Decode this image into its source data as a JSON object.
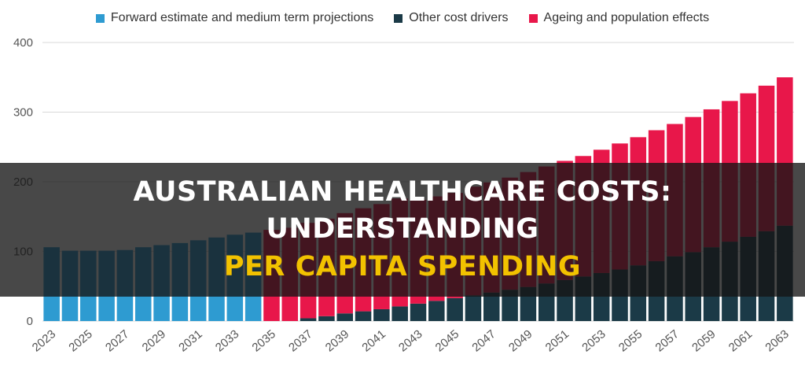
{
  "chart_data": {
    "type": "bar",
    "stacked": true,
    "categories": [
      "2023",
      "2024",
      "2025",
      "2026",
      "2027",
      "2028",
      "2029",
      "2030",
      "2031",
      "2032",
      "2033",
      "2034",
      "2035",
      "2036",
      "2037",
      "2038",
      "2039",
      "2040",
      "2041",
      "2042",
      "2043",
      "2044",
      "2045",
      "2046",
      "2047",
      "2048",
      "2049",
      "2050",
      "2051",
      "2052",
      "2053",
      "2054",
      "2055",
      "2056",
      "2057",
      "2058",
      "2059",
      "2060",
      "2061",
      "2062",
      "2063"
    ],
    "x_tick_labels": [
      "2023",
      "2025",
      "2027",
      "2029",
      "2031",
      "2033",
      "2035",
      "2037",
      "2039",
      "2041",
      "2043",
      "2045",
      "2047",
      "2049",
      "2051",
      "2053",
      "2055",
      "2057",
      "2059",
      "2061",
      "2063"
    ],
    "series": [
      {
        "name": "Forward estimate and medium term projections",
        "color": "#2e9bd1",
        "values": [
          106,
          101,
          101,
          101,
          102,
          106,
          109,
          112,
          116,
          120,
          124,
          127,
          0,
          0,
          0,
          0,
          0,
          0,
          0,
          0,
          0,
          0,
          0,
          0,
          0,
          0,
          0,
          0,
          0,
          0,
          0,
          0,
          0,
          0,
          0,
          0,
          0,
          0,
          0,
          0,
          0
        ]
      },
      {
        "name": "Other cost drivers",
        "color": "#1b3a47",
        "values": [
          0,
          0,
          0,
          0,
          0,
          0,
          0,
          0,
          0,
          0,
          0,
          0,
          0,
          0,
          4,
          7,
          11,
          14,
          17,
          21,
          25,
          29,
          33,
          37,
          41,
          45,
          49,
          54,
          59,
          64,
          69,
          74,
          80,
          86,
          93,
          99,
          106,
          114,
          121,
          129,
          137
        ]
      },
      {
        "name": "Ageing and population effects",
        "color": "#e8174a",
        "values": [
          0,
          0,
          0,
          0,
          0,
          0,
          0,
          0,
          0,
          0,
          0,
          0,
          131,
          134,
          137,
          140,
          144,
          148,
          151,
          155,
          149,
          150,
          151,
          156,
          158,
          161,
          165,
          168,
          171,
          173,
          177,
          181,
          184,
          188,
          190,
          194,
          198,
          202,
          206,
          209,
          213
        ]
      }
    ],
    "ylim": [
      0,
      400
    ],
    "y_ticks": [
      0,
      100,
      200,
      300,
      400
    ],
    "grid": true,
    "legend_position": "top"
  },
  "legend": {
    "items": [
      {
        "label": "Forward estimate and medium term projections",
        "color": "#2e9bd1"
      },
      {
        "label": "Other cost drivers",
        "color": "#1b3a47"
      },
      {
        "label": "Ageing and population effects",
        "color": "#e8174a"
      }
    ]
  },
  "banner": {
    "line1": "AUSTRALIAN HEALTHCARE COSTS: UNDERSTANDING",
    "line2": "PER CAPITA SPENDING",
    "line1_color": "#ffffff",
    "line2_color": "#f2c200"
  }
}
